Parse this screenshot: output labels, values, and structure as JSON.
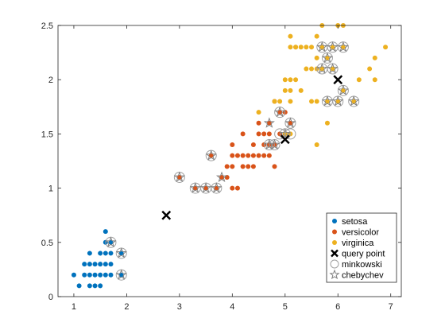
{
  "chart_data": {
    "type": "scatter",
    "title": "",
    "xlabel": "",
    "ylabel": "",
    "xlim": [
      0.7,
      7.2
    ],
    "ylim": [
      0,
      2.5
    ],
    "xticks": [
      1,
      2,
      3,
      4,
      5,
      6,
      7
    ],
    "yticks": [
      0,
      0.5,
      1,
      1.5,
      2,
      2.5
    ],
    "xtick_labels": [
      "1",
      "2",
      "3",
      "4",
      "5",
      "6",
      "7"
    ],
    "ytick_labels": [
      "0",
      "0.5",
      "1",
      "1.5",
      "2",
      "2.5"
    ],
    "grid": false,
    "legend_position": "bottom-right",
    "series": [
      {
        "name": "setosa",
        "marker": "filled-circle",
        "color": "#0072BD",
        "points": [
          [
            1.0,
            0.2
          ],
          [
            1.1,
            0.1
          ],
          [
            1.2,
            0.2
          ],
          [
            1.3,
            0.2
          ],
          [
            1.4,
            0.2
          ],
          [
            1.5,
            0.2
          ],
          [
            1.6,
            0.2
          ],
          [
            1.7,
            0.2
          ],
          [
            1.9,
            0.2
          ],
          [
            1.2,
            0.3
          ],
          [
            1.3,
            0.3
          ],
          [
            1.4,
            0.3
          ],
          [
            1.5,
            0.3
          ],
          [
            1.6,
            0.3
          ],
          [
            1.7,
            0.3
          ],
          [
            1.3,
            0.4
          ],
          [
            1.5,
            0.4
          ],
          [
            1.6,
            0.4
          ],
          [
            1.7,
            0.4
          ],
          [
            1.9,
            0.4
          ],
          [
            1.6,
            0.5
          ],
          [
            1.7,
            0.5
          ],
          [
            1.6,
            0.6
          ],
          [
            1.3,
            0.1
          ],
          [
            1.4,
            0.1
          ],
          [
            1.5,
            0.1
          ]
        ]
      },
      {
        "name": "versicolor",
        "marker": "filled-circle",
        "color": "#D95319",
        "points": [
          [
            3.0,
            1.1
          ],
          [
            3.3,
            1.0
          ],
          [
            3.5,
            1.0
          ],
          [
            3.7,
            1.0
          ],
          [
            3.9,
            1.1
          ],
          [
            3.6,
            1.3
          ],
          [
            3.8,
            1.1
          ],
          [
            3.9,
            1.2
          ],
          [
            4.0,
            1.0
          ],
          [
            4.0,
            1.2
          ],
          [
            4.0,
            1.3
          ],
          [
            4.1,
            1.0
          ],
          [
            4.1,
            1.3
          ],
          [
            4.2,
            1.2
          ],
          [
            4.2,
            1.3
          ],
          [
            4.3,
            1.3
          ],
          [
            4.4,
            1.2
          ],
          [
            4.4,
            1.3
          ],
          [
            4.5,
            1.3
          ],
          [
            4.6,
            1.3
          ],
          [
            4.0,
            1.4
          ],
          [
            4.4,
            1.4
          ],
          [
            4.5,
            1.5
          ],
          [
            4.7,
            1.4
          ],
          [
            4.8,
            1.4
          ],
          [
            4.9,
            1.5
          ],
          [
            5.0,
            1.5
          ],
          [
            4.5,
            1.6
          ],
          [
            4.7,
            1.6
          ],
          [
            5.1,
            1.6
          ],
          [
            4.8,
            1.8
          ],
          [
            5.0,
            1.7
          ],
          [
            4.2,
            1.5
          ],
          [
            4.6,
            1.4
          ],
          [
            4.9,
            1.7
          ],
          [
            4.7,
            1.5
          ],
          [
            4.6,
            1.5
          ],
          [
            4.3,
            1.2
          ],
          [
            4.8,
            1.2
          ],
          [
            4.7,
            1.3
          ]
        ]
      },
      {
        "name": "virginica",
        "marker": "filled-circle",
        "color": "#EDB120",
        "points": [
          [
            4.5,
            1.7
          ],
          [
            4.8,
            1.8
          ],
          [
            4.9,
            1.8
          ],
          [
            5.0,
            1.5
          ],
          [
            5.0,
            1.9
          ],
          [
            5.0,
            2.0
          ],
          [
            5.1,
            1.5
          ],
          [
            5.1,
            1.8
          ],
          [
            5.1,
            1.9
          ],
          [
            5.1,
            2.0
          ],
          [
            5.1,
            2.3
          ],
          [
            5.1,
            2.4
          ],
          [
            5.2,
            2.0
          ],
          [
            5.2,
            2.3
          ],
          [
            5.3,
            1.9
          ],
          [
            5.3,
            2.3
          ],
          [
            5.4,
            2.1
          ],
          [
            5.4,
            2.3
          ],
          [
            5.5,
            1.8
          ],
          [
            5.5,
            2.1
          ],
          [
            5.6,
            1.4
          ],
          [
            5.6,
            1.8
          ],
          [
            5.6,
            2.1
          ],
          [
            5.6,
            2.2
          ],
          [
            5.6,
            2.4
          ],
          [
            5.7,
            2.1
          ],
          [
            5.7,
            2.3
          ],
          [
            5.7,
            2.5
          ],
          [
            5.8,
            1.6
          ],
          [
            5.8,
            1.8
          ],
          [
            5.8,
            2.2
          ],
          [
            5.9,
            2.1
          ],
          [
            5.9,
            2.3
          ],
          [
            6.0,
            1.8
          ],
          [
            6.0,
            2.5
          ],
          [
            6.1,
            1.9
          ],
          [
            6.1,
            2.3
          ],
          [
            6.1,
            2.5
          ],
          [
            6.3,
            1.8
          ],
          [
            6.4,
            2.0
          ],
          [
            6.6,
            2.1
          ],
          [
            6.7,
            2.0
          ],
          [
            6.7,
            2.2
          ],
          [
            6.9,
            2.3
          ],
          [
            5.5,
            2.3
          ],
          [
            5.2,
            2.3
          ]
        ]
      },
      {
        "name": "query point",
        "marker": "x",
        "color": "#000000",
        "points": [
          [
            2.75,
            0.75
          ],
          [
            5.0,
            1.45
          ],
          [
            6.0,
            2.0
          ]
        ]
      },
      {
        "name": "minkowski",
        "marker": "open-circle",
        "color": "#A0A0A0",
        "points": [
          [
            1.7,
            0.5
          ],
          [
            1.9,
            0.4
          ],
          [
            1.9,
            0.2
          ],
          [
            3.0,
            1.1
          ],
          [
            3.3,
            1.0
          ],
          [
            3.5,
            1.0
          ],
          [
            3.7,
            1.0
          ],
          [
            3.6,
            1.3
          ],
          [
            4.7,
            1.4
          ],
          [
            4.8,
            1.4
          ],
          [
            4.9,
            1.5
          ],
          [
            5.0,
            1.5
          ],
          [
            5.1,
            1.5
          ],
          [
            4.9,
            1.7
          ],
          [
            5.1,
            1.6
          ],
          [
            5.7,
            2.3
          ],
          [
            5.8,
            2.2
          ],
          [
            5.9,
            2.3
          ],
          [
            6.1,
            2.3
          ],
          [
            5.7,
            2.1
          ],
          [
            5.9,
            2.1
          ],
          [
            5.8,
            1.8
          ],
          [
            6.0,
            1.8
          ],
          [
            6.1,
            1.9
          ],
          [
            6.3,
            1.8
          ]
        ]
      },
      {
        "name": "chebychev",
        "marker": "open-star",
        "color": "#808080",
        "points": [
          [
            1.7,
            0.5
          ],
          [
            1.9,
            0.4
          ],
          [
            1.9,
            0.2
          ],
          [
            3.0,
            1.1
          ],
          [
            3.3,
            1.0
          ],
          [
            3.5,
            1.0
          ],
          [
            3.7,
            1.0
          ],
          [
            3.6,
            1.3
          ],
          [
            3.8,
            1.1
          ],
          [
            4.7,
            1.6
          ],
          [
            4.7,
            1.4
          ],
          [
            4.9,
            1.7
          ],
          [
            5.0,
            1.5
          ],
          [
            5.1,
            1.6
          ],
          [
            4.8,
            1.4
          ],
          [
            5.7,
            2.3
          ],
          [
            5.9,
            2.3
          ],
          [
            6.1,
            2.3
          ],
          [
            5.8,
            2.2
          ],
          [
            5.7,
            2.1
          ],
          [
            5.9,
            2.1
          ],
          [
            5.8,
            1.8
          ],
          [
            6.0,
            1.8
          ],
          [
            6.1,
            1.9
          ],
          [
            6.3,
            1.8
          ]
        ]
      }
    ]
  }
}
